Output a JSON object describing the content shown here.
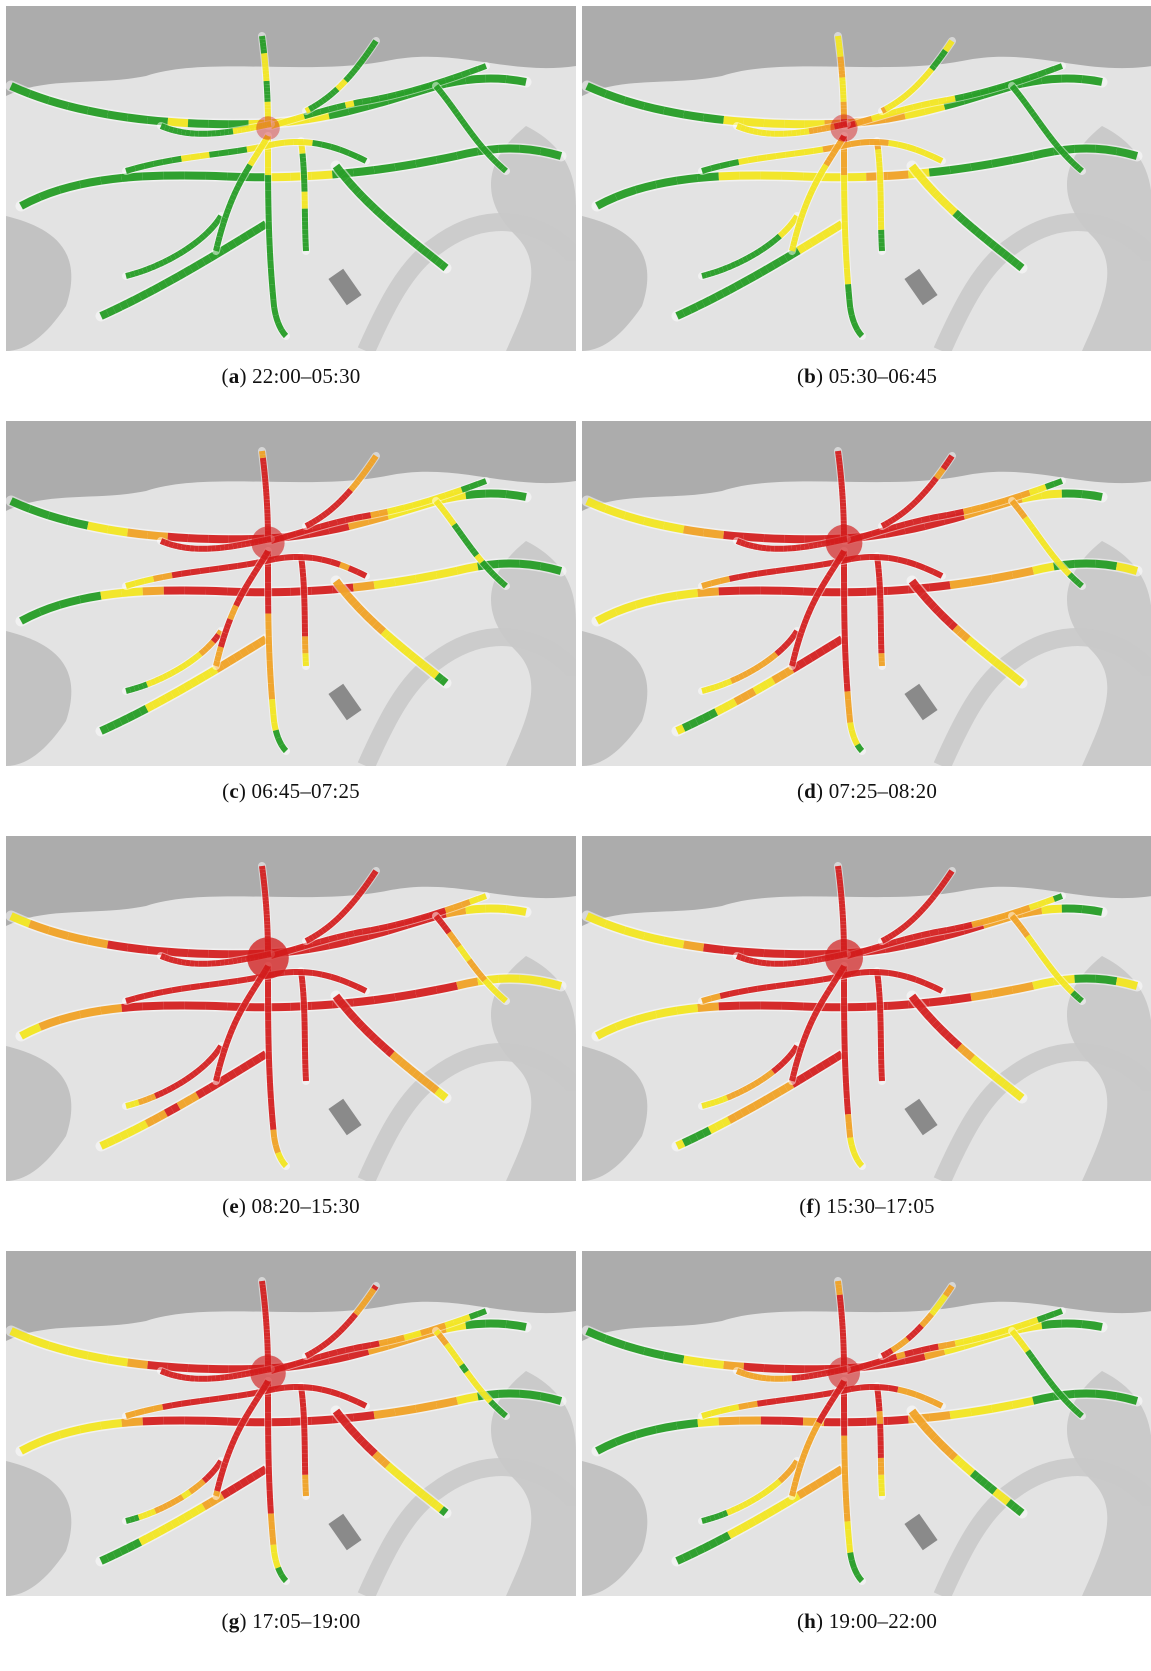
{
  "figure": {
    "panels": [
      {
        "id": "a",
        "time": "22:00–05:30",
        "congestion_level": 0.15
      },
      {
        "id": "b",
        "time": "05:30–06:45",
        "congestion_level": 0.3
      },
      {
        "id": "c",
        "time": "06:45–07:25",
        "congestion_level": 0.55
      },
      {
        "id": "d",
        "time": "07:25–08:20",
        "congestion_level": 0.7
      },
      {
        "id": "e",
        "time": "08:20–15:30",
        "congestion_level": 0.9
      },
      {
        "id": "f",
        "time": "15:30–17:05",
        "congestion_level": 0.75
      },
      {
        "id": "g",
        "time": "17:05–19:00",
        "congestion_level": 0.65
      },
      {
        "id": "h",
        "time": "19:00–22:00",
        "congestion_level": 0.5
      }
    ],
    "colors": {
      "free_flow": "#1f9a1f",
      "moderate": "#f2e51b",
      "slow": "#f0a020",
      "congested": "#d21a1a",
      "land_dark": "#9a9a9a",
      "land_light": "#e3e3e3",
      "river": "#c9c9c9"
    }
  }
}
